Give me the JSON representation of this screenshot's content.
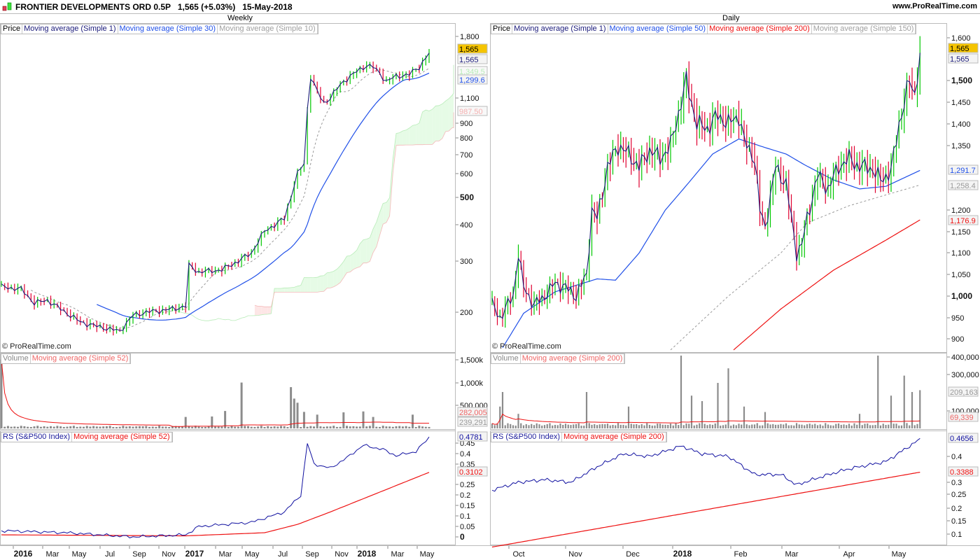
{
  "header": {
    "title": "FRONTIER DEVELOPMENTS ORD 0.5P   1,565 (+5.03%)   15-May-2018",
    "site": "www.ProRealTime.com"
  },
  "colors": {
    "up": "#00c800",
    "down": "#e00030",
    "ma1": "#1a1a7a",
    "ma_blue": "#2050e8",
    "ma_gray": "#a0a0a0",
    "ma_red": "#ee1111",
    "vol": "#8c8c8c",
    "price_tag": "#f5c400"
  },
  "weekly": {
    "timeframe": "Weekly",
    "legend": [
      "Price",
      "Moving average (Simple 1)",
      "Moving average (Simple 30)",
      "Moving average (Simple 10)"
    ],
    "copyright": "© ProRealTime.com",
    "price_ticks": [
      "1,800",
      "1,100",
      "900",
      "800",
      "700",
      "600",
      "500",
      "400",
      "300",
      "200"
    ],
    "price_tags": [
      "1,565",
      "1,565",
      "1,349.5",
      "1,299.6",
      "987.50"
    ],
    "volume_legend": [
      "Volume",
      "Moving average (Simple 52)"
    ],
    "volume_ticks": [
      "1,500k",
      "1,000k",
      "500,000"
    ],
    "volume_tags": [
      "282,005",
      "239,291"
    ],
    "rs_legend": [
      "RS (S&P500 Index)",
      "Moving average (Simple 52)"
    ],
    "rs_ticks": [
      "0.45",
      "0.4",
      "0.35",
      "0.25",
      "0.2",
      "0.15",
      "0.1",
      "0.05",
      "0"
    ],
    "rs_tags": [
      "0.4781",
      "0.3102"
    ],
    "date_ticks": [
      "2016",
      "Mar",
      "May",
      "Jul",
      "Sep",
      "Nov",
      "2017",
      "Mar",
      "May",
      "Jul",
      "Sep",
      "Nov",
      "2018",
      "Mar",
      "May"
    ]
  },
  "daily": {
    "timeframe": "Daily",
    "legend": [
      "Price",
      "Moving average (Simple 1)",
      "Moving average (Simple 50)",
      "Moving average (Simple 200)",
      "Moving average (Simple 150)"
    ],
    "copyright": "© ProRealTime.com",
    "price_ticks": [
      "1,600",
      "1,500",
      "1,450",
      "1,400",
      "1,350",
      "1,200",
      "1,150",
      "1,100",
      "1,050",
      "1,000",
      "950",
      "900"
    ],
    "price_tags": [
      "1,565",
      "1,565",
      "1,291.7",
      "1,258.4",
      "1,176.9"
    ],
    "volume_legend": [
      "Volume",
      "Moving average (Simple 200)"
    ],
    "volume_ticks": [
      "400,000",
      "300,000",
      "100,000"
    ],
    "volume_tags": [
      "209,163",
      "69,339"
    ],
    "rs_legend": [
      "RS (S&P500 Index)",
      "Moving average (Simple 200)"
    ],
    "rs_ticks": [
      "0.4",
      "0.3",
      "0.25",
      "0.2",
      "0.15",
      "0.1"
    ],
    "rs_tags": [
      "0.4656",
      "0.3388"
    ],
    "date_ticks": [
      "Oct",
      "Nov",
      "Dec",
      "2018",
      "Feb",
      "Mar",
      "Apr",
      "May"
    ]
  },
  "chart_data": [
    {
      "type": "line",
      "name": "weekly-price",
      "scale": "log",
      "bars": 131,
      "close_anchors": [
        [
          0,
          245
        ],
        [
          6,
          240
        ],
        [
          10,
          215
        ],
        [
          14,
          220
        ],
        [
          18,
          205
        ],
        [
          24,
          185
        ],
        [
          28,
          180
        ],
        [
          36,
          172
        ],
        [
          40,
          195
        ],
        [
          44,
          200
        ],
        [
          52,
          205
        ],
        [
          56,
          210
        ],
        [
          57,
          290
        ],
        [
          60,
          275
        ],
        [
          67,
          280
        ],
        [
          72,
          300
        ],
        [
          76,
          320
        ],
        [
          80,
          380
        ],
        [
          86,
          420
        ],
        [
          88,
          500
        ],
        [
          90,
          600
        ],
        [
          92,
          650
        ],
        [
          93,
          1000
        ],
        [
          94,
          1300
        ],
        [
          96,
          1150
        ],
        [
          98,
          1050
        ],
        [
          100,
          1100
        ],
        [
          104,
          1250
        ],
        [
          108,
          1350
        ],
        [
          111,
          1420
        ],
        [
          113,
          1400
        ],
        [
          115,
          1330
        ],
        [
          117,
          1250
        ],
        [
          120,
          1300
        ],
        [
          124,
          1320
        ],
        [
          127,
          1400
        ],
        [
          130,
          1565
        ]
      ],
      "volume_spikes_k": [
        [
          0,
          1500
        ],
        [
          56,
          250
        ],
        [
          64,
          260
        ],
        [
          68,
          380
        ],
        [
          73,
          1000
        ],
        [
          88,
          900
        ],
        [
          89,
          650
        ],
        [
          90,
          560
        ],
        [
          92,
          360
        ],
        [
          96,
          300
        ],
        [
          104,
          350
        ],
        [
          110,
          370
        ],
        [
          113,
          250
        ],
        [
          125,
          300
        ]
      ],
      "rs": [
        [
          0,
          0.03
        ],
        [
          20,
          0.02
        ],
        [
          40,
          0.0
        ],
        [
          56,
          0.01
        ],
        [
          60,
          0.05
        ],
        [
          76,
          0.07
        ],
        [
          86,
          0.12
        ],
        [
          91,
          0.2
        ],
        [
          93,
          0.45
        ],
        [
          95,
          0.35
        ],
        [
          100,
          0.33
        ],
        [
          105,
          0.38
        ],
        [
          110,
          0.44
        ],
        [
          116,
          0.42
        ],
        [
          120,
          0.39
        ],
        [
          126,
          0.41
        ],
        [
          130,
          0.478
        ]
      ],
      "rs_ma": [
        [
          0,
          0.01
        ],
        [
          56,
          0.005
        ],
        [
          80,
          0.02
        ],
        [
          90,
          0.06
        ],
        [
          100,
          0.12
        ],
        [
          130,
          0.31
        ]
      ]
    },
    {
      "type": "line",
      "name": "daily-price",
      "scale": "linear",
      "bars": 164,
      "close_anchors": [
        [
          0,
          980
        ],
        [
          3,
          950
        ],
        [
          8,
          1000
        ],
        [
          10,
          1100
        ],
        [
          12,
          1020
        ],
        [
          16,
          980
        ],
        [
          20,
          1000
        ],
        [
          24,
          1030
        ],
        [
          28,
          1020
        ],
        [
          32,
          1000
        ],
        [
          36,
          1050
        ],
        [
          38,
          1200
        ],
        [
          40,
          1180
        ],
        [
          44,
          1300
        ],
        [
          48,
          1350
        ],
        [
          52,
          1330
        ],
        [
          56,
          1300
        ],
        [
          60,
          1340
        ],
        [
          64,
          1320
        ],
        [
          68,
          1350
        ],
        [
          72,
          1450
        ],
        [
          74,
          1500
        ],
        [
          76,
          1450
        ],
        [
          78,
          1400
        ],
        [
          82,
          1390
        ],
        [
          86,
          1420
        ],
        [
          90,
          1400
        ],
        [
          94,
          1420
        ],
        [
          96,
          1360
        ],
        [
          100,
          1320
        ],
        [
          102,
          1200
        ],
        [
          104,
          1160
        ],
        [
          108,
          1300
        ],
        [
          112,
          1260
        ],
        [
          116,
          1100
        ],
        [
          118,
          1120
        ],
        [
          120,
          1180
        ],
        [
          124,
          1280
        ],
        [
          128,
          1250
        ],
        [
          132,
          1300
        ],
        [
          136,
          1320
        ],
        [
          140,
          1300
        ],
        [
          144,
          1300
        ],
        [
          148,
          1270
        ],
        [
          152,
          1290
        ],
        [
          155,
          1400
        ],
        [
          159,
          1500
        ],
        [
          161,
          1470
        ],
        [
          163,
          1565
        ]
      ],
      "ma50": [
        [
          4,
          880
        ],
        [
          12,
          960
        ],
        [
          24,
          1010
        ],
        [
          40,
          1040
        ],
        [
          47,
          1037
        ],
        [
          56,
          1100
        ],
        [
          66,
          1200
        ],
        [
          74,
          1257
        ],
        [
          84,
          1330
        ],
        [
          94,
          1365
        ],
        [
          104,
          1345
        ],
        [
          112,
          1330
        ],
        [
          119,
          1305
        ],
        [
          130,
          1270
        ],
        [
          140,
          1249
        ],
        [
          150,
          1255
        ],
        [
          163,
          1292
        ]
      ],
      "ma150": [
        [
          68,
          875
        ],
        [
          90,
          1000
        ],
        [
          110,
          1100
        ],
        [
          120,
          1170
        ],
        [
          136,
          1210
        ],
        [
          150,
          1235
        ],
        [
          163,
          1258
        ]
      ],
      "ma200": [
        [
          92,
          875
        ],
        [
          110,
          970
        ],
        [
          130,
          1060
        ],
        [
          150,
          1130
        ],
        [
          163,
          1177
        ]
      ],
      "volume_spikes_k": [
        [
          3,
          120
        ],
        [
          4,
          200
        ],
        [
          10,
          80
        ],
        [
          36,
          200
        ],
        [
          52,
          120
        ],
        [
          72,
          400
        ],
        [
          76,
          180
        ],
        [
          80,
          150
        ],
        [
          86,
          250
        ],
        [
          90,
          330
        ],
        [
          96,
          120
        ],
        [
          104,
          90
        ],
        [
          140,
          80
        ],
        [
          147,
          400
        ],
        [
          152,
          180
        ],
        [
          157,
          290
        ],
        [
          160,
          200
        ],
        [
          163,
          210
        ]
      ],
      "rs": [
        [
          0,
          0.27
        ],
        [
          10,
          0.3
        ],
        [
          20,
          0.31
        ],
        [
          30,
          0.3
        ],
        [
          40,
          0.36
        ],
        [
          50,
          0.41
        ],
        [
          60,
          0.4
        ],
        [
          72,
          0.44
        ],
        [
          80,
          0.41
        ],
        [
          90,
          0.4
        ],
        [
          100,
          0.33
        ],
        [
          110,
          0.33
        ],
        [
          116,
          0.29
        ],
        [
          125,
          0.32
        ],
        [
          135,
          0.35
        ],
        [
          150,
          0.38
        ],
        [
          163,
          0.466
        ]
      ],
      "rs_ma": [
        [
          0,
          0.05
        ],
        [
          163,
          0.339
        ]
      ]
    }
  ]
}
